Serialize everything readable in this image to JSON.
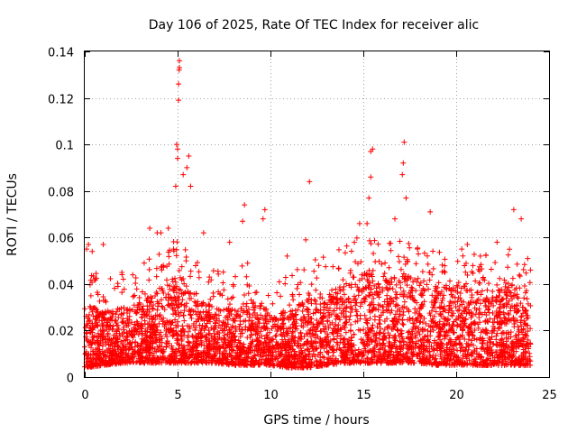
{
  "chart_data": {
    "type": "scatter",
    "title": "Day 106 of 2025, Rate Of TEC Index for receiver alic",
    "xlabel": "GPS time / hours",
    "ylabel": "ROTI / TECUs",
    "xlim": [
      0,
      25
    ],
    "ylim": [
      0,
      0.14
    ],
    "xticks": [
      0,
      5,
      10,
      15,
      20,
      25
    ],
    "yticks": [
      0,
      0.02,
      0.04,
      0.06,
      0.08,
      0.1,
      0.12,
      0.14
    ],
    "xtick_labels": [
      "0",
      "5",
      "10",
      "15",
      "20",
      "25"
    ],
    "ytick_labels": [
      "0",
      "0.02",
      "0.04",
      "0.06",
      "0.08",
      "0.1",
      "0.12",
      "0.14"
    ],
    "grid": true,
    "marker": "+",
    "color": "#ff0000",
    "series": [
      {
        "name": "ROTI",
        "sample_points": [
          [
            0.1,
            0.055
          ],
          [
            0.2,
            0.057
          ],
          [
            0.4,
            0.054
          ],
          [
            1.0,
            0.057
          ],
          [
            2.0,
            0.045
          ],
          [
            3.2,
            0.049
          ],
          [
            3.5,
            0.064
          ],
          [
            3.9,
            0.062
          ],
          [
            4.1,
            0.062
          ],
          [
            4.5,
            0.064
          ],
          [
            4.9,
            0.082
          ],
          [
            4.95,
            0.1
          ],
          [
            5.0,
            0.098
          ],
          [
            5.0,
            0.094
          ],
          [
            5.05,
            0.119
          ],
          [
            5.05,
            0.126
          ],
          [
            5.08,
            0.132
          ],
          [
            5.1,
            0.136
          ],
          [
            5.1,
            0.133
          ],
          [
            5.3,
            0.087
          ],
          [
            5.5,
            0.09
          ],
          [
            5.6,
            0.095
          ],
          [
            5.7,
            0.082
          ],
          [
            6.4,
            0.062
          ],
          [
            7.8,
            0.058
          ],
          [
            8.5,
            0.067
          ],
          [
            8.6,
            0.074
          ],
          [
            9.6,
            0.068
          ],
          [
            9.7,
            0.072
          ],
          [
            10.9,
            0.052
          ],
          [
            11.9,
            0.059
          ],
          [
            12.1,
            0.084
          ],
          [
            12.6,
            0.048
          ],
          [
            14.8,
            0.066
          ],
          [
            15.2,
            0.066
          ],
          [
            15.3,
            0.077
          ],
          [
            15.4,
            0.086
          ],
          [
            15.4,
            0.097
          ],
          [
            15.5,
            0.098
          ],
          [
            16.7,
            0.068
          ],
          [
            17.1,
            0.087
          ],
          [
            17.15,
            0.092
          ],
          [
            17.2,
            0.101
          ],
          [
            17.3,
            0.077
          ],
          [
            18.6,
            0.071
          ],
          [
            20.3,
            0.055
          ],
          [
            20.6,
            0.057
          ],
          [
            21.3,
            0.052
          ],
          [
            22.2,
            0.058
          ],
          [
            23.1,
            0.072
          ],
          [
            23.5,
            0.068
          ],
          [
            24.0,
            0.046
          ]
        ],
        "baseline_envelope": {
          "hours": [
            0,
            1,
            2,
            3,
            4,
            5,
            6,
            7,
            8,
            9,
            10,
            11,
            12,
            13,
            14,
            15,
            16,
            17,
            18,
            19,
            20,
            21,
            22,
            23,
            24
          ],
          "typical_max": [
            0.032,
            0.028,
            0.03,
            0.032,
            0.038,
            0.044,
            0.036,
            0.03,
            0.03,
            0.034,
            0.028,
            0.028,
            0.034,
            0.036,
            0.04,
            0.046,
            0.042,
            0.044,
            0.042,
            0.038,
            0.04,
            0.038,
            0.036,
            0.04,
            0.036
          ],
          "typical_min": [
            0.004,
            0.005,
            0.006,
            0.006,
            0.006,
            0.006,
            0.006,
            0.006,
            0.005,
            0.005,
            0.005,
            0.004,
            0.004,
            0.005,
            0.006,
            0.006,
            0.006,
            0.006,
            0.006,
            0.005,
            0.005,
            0.005,
            0.005,
            0.005,
            0.005
          ]
        }
      }
    ]
  }
}
